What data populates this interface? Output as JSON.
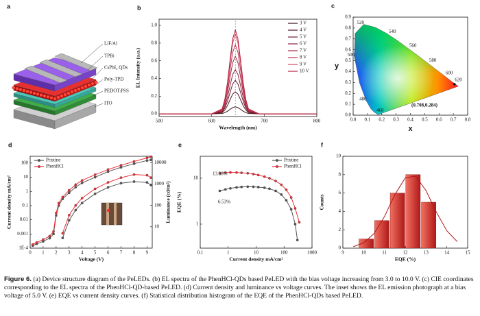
{
  "diagram": {
    "label": "a",
    "layers": [
      "LiF/Al",
      "TPBi",
      "CsPbI₃ QDs",
      "Poly-TPD",
      "PEDOT:PSS",
      "ITO"
    ]
  },
  "chart_data": [
    {
      "type": "line",
      "label": "b",
      "xlabel": "Wavelength (nm)",
      "ylabel": "EL Intensity (a.u.)",
      "x": [
        500,
        600,
        620,
        625,
        630,
        635,
        640,
        645,
        650,
        655,
        660,
        665,
        670,
        690,
        800
      ],
      "xlim": [
        500,
        800
      ],
      "xticks": [
        500,
        600,
        700,
        800
      ],
      "ylim": [
        -0.03,
        1.07
      ],
      "yticks": [
        {
          "value": 0,
          "label": "0.0"
        },
        0.2,
        0.4,
        0.6,
        0.8,
        {
          "value": 1,
          "label": "1.0"
        }
      ],
      "legend": "upper right",
      "markers": false,
      "series": [
        {
          "name": "3 V",
          "color": "#3a0f12",
          "values": [
            0,
            0,
            0.005,
            0.014,
            0.03,
            0.051,
            0.071,
            0.08,
            0.071,
            0.051,
            0.03,
            0.014,
            0.005,
            0,
            0
          ]
        },
        {
          "name": "4 V",
          "color": "#571421",
          "values": [
            0,
            0,
            0.015,
            0.043,
            0.093,
            0.16,
            0.223,
            0.25,
            0.223,
            0.16,
            0.093,
            0.043,
            0.015,
            0,
            0
          ]
        },
        {
          "name": "5 V",
          "color": "#731a2e",
          "values": [
            0,
            0,
            0.023,
            0.065,
            0.141,
            0.243,
            0.338,
            0.38,
            0.338,
            0.243,
            0.141,
            0.065,
            0.023,
            0,
            0
          ]
        },
        {
          "name": "6 V",
          "color": "#8c1f38",
          "values": [
            0,
            0,
            0.03,
            0.085,
            0.185,
            0.32,
            0.445,
            0.5,
            0.445,
            0.32,
            0.185,
            0.085,
            0.03,
            0,
            0
          ]
        },
        {
          "name": "7 V",
          "color": "#a52643",
          "values": [
            0,
            0,
            0.039,
            0.111,
            0.241,
            0.416,
            0.579,
            0.65,
            0.579,
            0.416,
            0.241,
            0.111,
            0.039,
            0,
            0
          ]
        },
        {
          "name": "8 V",
          "color": "#bb2f4e",
          "values": [
            0,
            0,
            0.047,
            0.133,
            0.289,
            0.499,
            0.694,
            0.78,
            0.694,
            0.499,
            0.289,
            0.133,
            0.047,
            0,
            0
          ]
        },
        {
          "name": "9 V",
          "color": "#cf4a62",
          "values": [
            0,
            0,
            0.054,
            0.153,
            0.333,
            0.576,
            0.801,
            0.9,
            0.801,
            0.576,
            0.333,
            0.153,
            0.054,
            0,
            0
          ]
        },
        {
          "name": "10 V",
          "color": "#b8203a",
          "values": [
            0,
            0,
            0.057,
            0.162,
            0.352,
            0.608,
            0.846,
            0.95,
            0.846,
            0.608,
            0.352,
            0.162,
            0.057,
            0,
            0
          ]
        }
      ]
    },
    {
      "type": "cie",
      "label": "c",
      "xlabel": "x",
      "ylabel": "y",
      "xlim": [
        0,
        0.8
      ],
      "xticks": [
        {
          "value": 0,
          "label": "0.0"
        },
        0.1,
        0.2,
        0.3,
        0.4,
        0.5,
        0.6,
        0.7,
        0.8
      ],
      "ylim": [
        0,
        0.9
      ],
      "yticks": [
        {
          "value": 0,
          "label": "0.0"
        },
        0.1,
        0.2,
        0.3,
        0.4,
        0.5,
        0.6,
        0.7,
        0.8,
        0.9
      ],
      "wavelength_labels": [
        "460",
        "480",
        "500",
        "520",
        "540",
        "560",
        "580",
        "600",
        "620"
      ],
      "x": [
        0.708
      ],
      "values": [
        0.284
      ],
      "annotations": [
        "(0.708,0.284)"
      ],
      "color": "#111111"
    },
    {
      "type": "line",
      "label": "d",
      "xlabel": "Voltage (V)",
      "ylabel": "Current density mA/cm²",
      "y2label": "Luminance (cd/m²)",
      "x": [
        0.2,
        0.5,
        1,
        1.5,
        1.8,
        2,
        2.2,
        2.5,
        3,
        3.5,
        4,
        5,
        6,
        7,
        8,
        9,
        9.3
      ],
      "xlim": [
        0,
        9.4
      ],
      "xticks": [
        0,
        1,
        2,
        3,
        4,
        5,
        6,
        7,
        8,
        9
      ],
      "yscale": "log",
      "ylim": [
        0.0001,
        300
      ],
      "yticks": [
        {
          "value": 0.0001,
          "label": "1E-4"
        },
        0.001,
        0.01,
        0.1,
        1,
        10,
        100
      ],
      "y2scale": "log",
      "y2lim": [
        1,
        20000
      ],
      "y2ticks": [
        10,
        100,
        1000,
        10000
      ],
      "legend": "upper left",
      "markers": true,
      "series": [
        {
          "name": "Pristine",
          "color": "#555555",
          "values": [
            0.00015,
            0.0002,
            0.0003,
            0.0005,
            0.001,
            0.02,
            0.1,
            0.3,
            0.8,
            2,
            4,
            10,
            25,
            50,
            90,
            150,
            170
          ]
        },
        {
          "name": "PhenHCl",
          "color": "#e8303a",
          "values": [
            0.00018,
            0.00025,
            0.0004,
            0.0007,
            0.0015,
            0.03,
            0.15,
            0.4,
            1.2,
            3,
            6,
            15,
            35,
            70,
            130,
            230,
            280
          ]
        },
        {
          "name": "Pristine",
          "color": "#555555",
          "axis": "y2",
          "values": [
            null,
            null,
            null,
            null,
            null,
            null,
            null,
            3,
            20,
            60,
            130,
            350,
            700,
            1100,
            1300,
            1200,
            900
          ]
        },
        {
          "name": "PhenHCl",
          "color": "#e8303a",
          "axis": "y2",
          "values": [
            null,
            null,
            null,
            null,
            null,
            null,
            null,
            5,
            35,
            100,
            220,
            600,
            1200,
            2000,
            2800,
            2600,
            2000
          ]
        }
      ]
    },
    {
      "type": "line",
      "label": "e",
      "xlabel": "Current density mA/cm²",
      "ylabel": "EQE (%)",
      "xscale": "log",
      "xlim": [
        0.1,
        1000
      ],
      "xticks": [
        0.1,
        1,
        10,
        100,
        1000
      ],
      "yscale": "log",
      "ylim": [
        0.3,
        30
      ],
      "yticks": [
        1,
        10
      ],
      "legend": "upper right",
      "markers": true,
      "annotations": [
        "13.38%",
        "6.53%"
      ],
      "series": [
        {
          "name": "Pristine",
          "color": "#555555",
          "x": [
            0.5,
            0.8,
            1.2,
            2,
            3,
            5,
            8,
            12,
            20,
            30,
            50,
            80,
            120,
            180,
            250,
            300
          ],
          "values": [
            5.3,
            5.7,
            6.0,
            6.3,
            6.45,
            6.53,
            6.5,
            6.4,
            6.2,
            5.9,
            5.3,
            4.4,
            3.3,
            2.1,
            1.0,
            0.45
          ]
        },
        {
          "name": "PhenHCl",
          "color": "#e8303a",
          "x": [
            0.5,
            0.8,
            1.2,
            2,
            3,
            5,
            8,
            12,
            20,
            30,
            50,
            80,
            120,
            180,
            250,
            350
          ],
          "values": [
            12.8,
            13.2,
            13.38,
            13.3,
            13.1,
            12.8,
            12.3,
            11.7,
            10.8,
            10,
            8.7,
            7.2,
            5.6,
            3.8,
            2.2,
            1.1
          ]
        }
      ]
    },
    {
      "type": "histogram",
      "label": "f",
      "xlabel": "EQE (%)",
      "ylabel": "Counts",
      "bins": [
        9.75,
        10.5,
        11.25,
        12,
        12.75,
        13.5
      ],
      "values": [
        1,
        3,
        6,
        8,
        5
      ],
      "color": "#d8302e",
      "xlim": [
        9,
        15
      ],
      "xticks": [
        9,
        10,
        11,
        12,
        13,
        14,
        15
      ],
      "ylim": [
        0,
        10
      ],
      "yticks": [
        0,
        2,
        4,
        6,
        8,
        10
      ],
      "fit": {
        "color": "#b01818",
        "x": [
          9.5,
          10,
          10.5,
          11,
          11.5,
          12,
          12.5,
          13,
          13.5,
          14,
          14.5
        ],
        "values": [
          0.16,
          0.57,
          1.58,
          3.44,
          5.81,
          7.65,
          7.84,
          6.26,
          3.9,
          1.89,
          0.71
        ]
      }
    }
  ],
  "caption": {
    "label": "Figure 6.",
    "text": "(a) Device structure diagram of the PeLEDs. (b) EL spectra of the PhenHCl-QDs based PeLED with the bias voltage increasing from 3.0 to 10.0 V. (c) CIE coordinates corresponding to the EL spectra of the PhenHCl-QD-based PeLED. (d) Current density and luminance vs voltage curves. The inset shows the EL emission photograph at a bias voltage of 5.0 V. (e) EQE vs current density curves. (f) Statistical distribution histogram of the EQE of the PhenHCl-QDs based PeLED."
  }
}
